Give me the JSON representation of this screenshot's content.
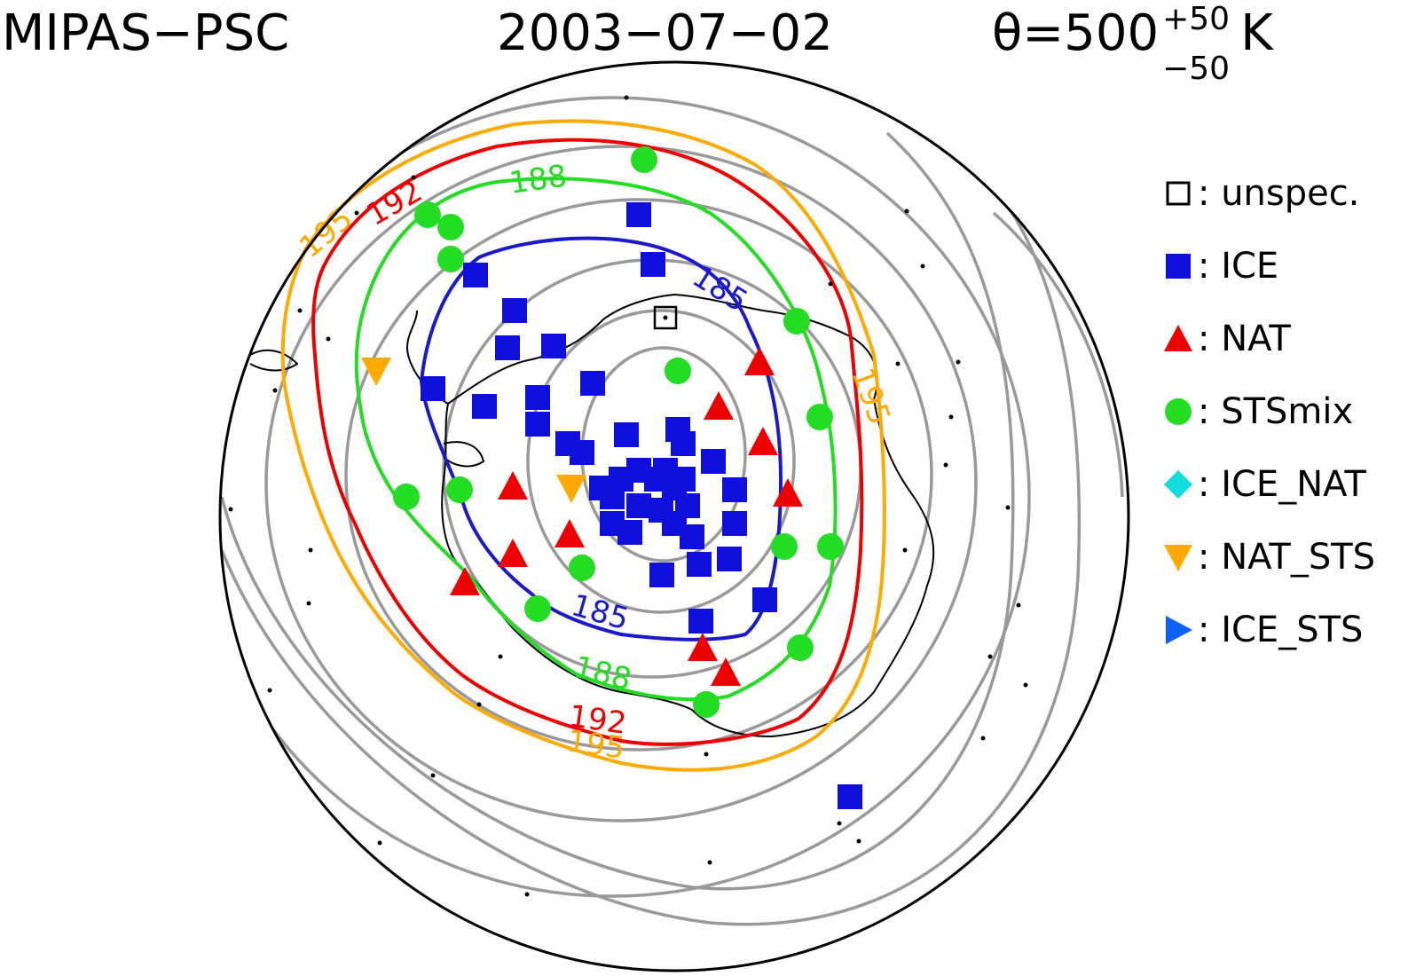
{
  "title": {
    "instrument": "MIPAS−PSC",
    "date": "2003−07−02",
    "theta_symbol": "θ=500",
    "theta_sup": "+50",
    "theta_sub": "−50",
    "theta_unit": "K"
  },
  "colors": {
    "ice": "#1010dd",
    "nat": "#ee0000",
    "stsmix": "#22dd22",
    "ice_nat": "#11dddd",
    "nat_sts": "#ffaa00",
    "ice_sts": "#1060ff",
    "c185": "#1a1acc",
    "c188": "#22dd22",
    "c192": "#ee0000",
    "c195": "#ffaa00",
    "background_contours": "#999999"
  },
  "legend": [
    {
      "symbol": "square-open",
      "label": "unspec.",
      "color": "#000000"
    },
    {
      "symbol": "square",
      "label": "ICE",
      "color": "#1010dd"
    },
    {
      "symbol": "triangle-up",
      "label": "NAT",
      "color": "#ee0000"
    },
    {
      "symbol": "circle",
      "label": "STSmix",
      "color": "#22dd22"
    },
    {
      "symbol": "diamond",
      "label": "ICE_NAT",
      "color": "#11dddd"
    },
    {
      "symbol": "triangle-down",
      "label": "NAT_STS",
      "color": "#ffaa00"
    },
    {
      "symbol": "triangle-right",
      "label": "ICE_STS",
      "color": "#1060ff"
    }
  ],
  "contour_labels": {
    "c185": "185",
    "c188": "188",
    "c192": "192",
    "c195": "195"
  }
}
